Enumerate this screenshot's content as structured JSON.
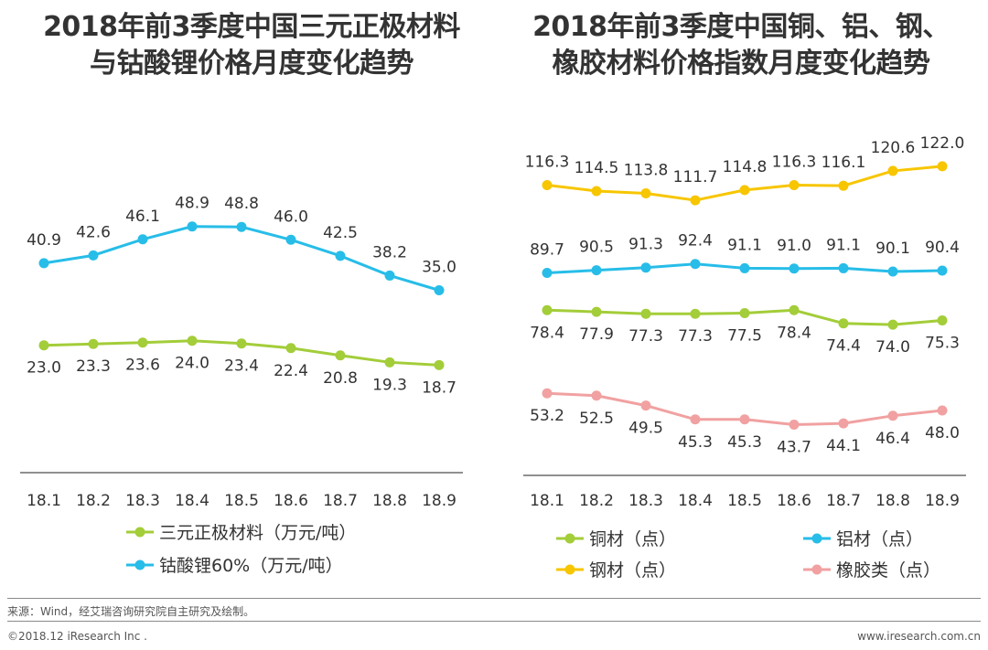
{
  "titles": {
    "left": [
      "2018年前3季度中国三元正极材料",
      "与钴酸锂价格月度变化趋势"
    ],
    "right": [
      "2018年前3季度中国铜、铝、钢、",
      "橡胶材料价格指数月度变化趋势"
    ]
  },
  "footer": {
    "source": "来源：Wind，经艾瑞咨询研究院自主研究及绘制。",
    "copyright": "©2018.12 iResearch Inc .",
    "website": "www.iresearch.com.cn"
  },
  "colors": {
    "green": "#a3cd39",
    "blue": "#27bde8",
    "yellow": "#f7c600",
    "pink": "#f1a1a1"
  },
  "chart_data": [
    {
      "type": "line",
      "title": "2018年前3季度中国三元正极材料与钴酸锂价格月度变化趋势",
      "categories": [
        "18.1",
        "18.2",
        "18.3",
        "18.4",
        "18.5",
        "18.6",
        "18.7",
        "18.8",
        "18.9"
      ],
      "series": [
        {
          "name": "三元正极材料（万元/吨）",
          "color": "green",
          "labels": "below",
          "values": [
            23.0,
            23.3,
            23.6,
            24.0,
            23.4,
            22.4,
            20.8,
            19.3,
            18.7
          ]
        },
        {
          "name": "钴酸锂60%（万元/吨）",
          "color": "blue",
          "labels": "above",
          "values": [
            40.9,
            42.6,
            46.1,
            48.9,
            48.8,
            46.0,
            42.5,
            38.2,
            35.0
          ]
        }
      ],
      "legend": "bottom"
    },
    {
      "type": "line",
      "title": "2018年前3季度中国铜、铝、钢、橡胶材料价格指数月度变化趋势",
      "categories": [
        "18.1",
        "18.2",
        "18.3",
        "18.4",
        "18.5",
        "18.6",
        "18.7",
        "18.8",
        "18.9"
      ],
      "series": [
        {
          "name": "钢材（点）",
          "color": "yellow",
          "labels": "above",
          "values": [
            116.3,
            114.5,
            113.8,
            111.7,
            114.8,
            116.3,
            116.1,
            120.6,
            122.0
          ]
        },
        {
          "name": "铝材（点）",
          "color": "blue",
          "labels": "above",
          "values": [
            89.7,
            90.5,
            91.3,
            92.4,
            91.1,
            91.0,
            91.1,
            90.1,
            90.4
          ]
        },
        {
          "name": "铜材（点）",
          "color": "green",
          "labels": "below",
          "values": [
            78.4,
            77.9,
            77.3,
            77.3,
            77.5,
            78.4,
            74.4,
            74.0,
            75.3
          ]
        },
        {
          "name": "橡胶类（点）",
          "color": "pink",
          "labels": "below",
          "values": [
            53.2,
            52.5,
            49.5,
            45.3,
            45.3,
            43.7,
            44.1,
            46.4,
            48.0
          ]
        }
      ],
      "legend": "bottom"
    }
  ]
}
